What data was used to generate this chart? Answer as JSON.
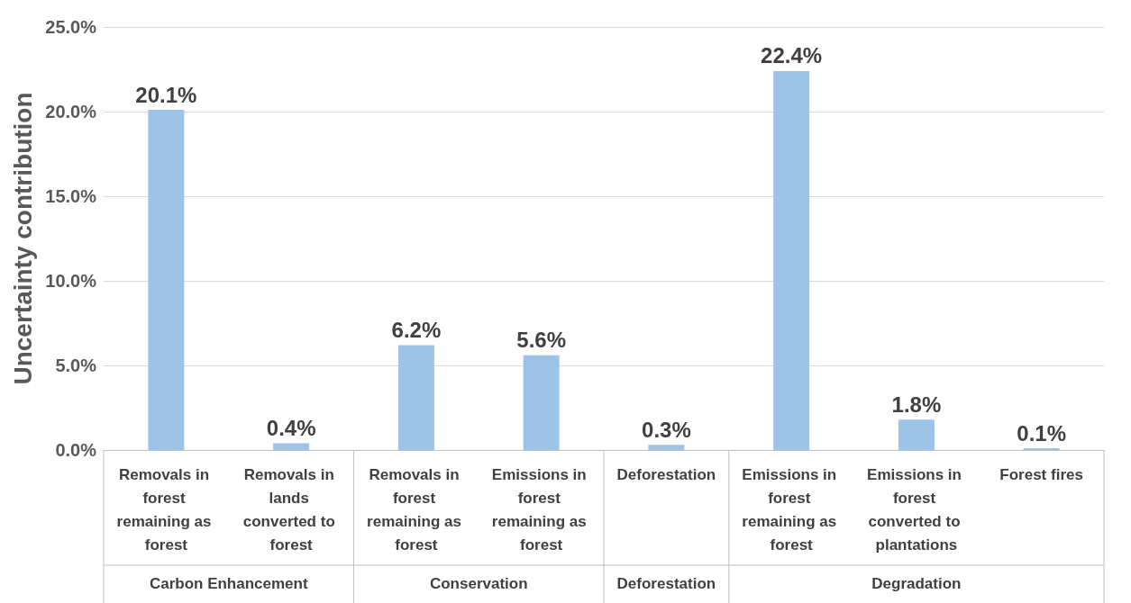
{
  "chart_data": {
    "type": "bar",
    "ylabel": "Uncertainty contribution",
    "categories": [
      "Removals in forest remaining as forest",
      "Removals in lands converted to forest",
      "Removals in forest remaining as forest",
      "Emissions in forest remaining as forest",
      "Deforestation",
      "Emissions in forest remaining as forest",
      "Emissions in forest converted to plantations",
      "Forest fires"
    ],
    "values": [
      20.1,
      0.4,
      6.2,
      5.6,
      0.3,
      22.4,
      1.8,
      0.1
    ],
    "color": "#9dc3e6",
    "ylim": [
      0,
      25
    ],
    "yticks": [
      {
        "value": 0,
        "label": "0.0%"
      },
      {
        "value": 5,
        "label": "5.0%"
      },
      {
        "value": 10,
        "label": "10.0%"
      },
      {
        "value": 15,
        "label": "15.0%"
      },
      {
        "value": 20,
        "label": "20.0%"
      },
      {
        "value": 25,
        "label": "25.0%"
      }
    ],
    "annotations": [
      "Carbon Enhancement",
      "Conservation",
      "Deforestation",
      "Degradation"
    ],
    "value_labels": [
      "20.1%",
      "0.4%",
      "6.2%",
      "5.6%",
      "0.3%",
      "22.4%",
      "1.8%",
      "0.1%"
    ],
    "grid": "y"
  }
}
